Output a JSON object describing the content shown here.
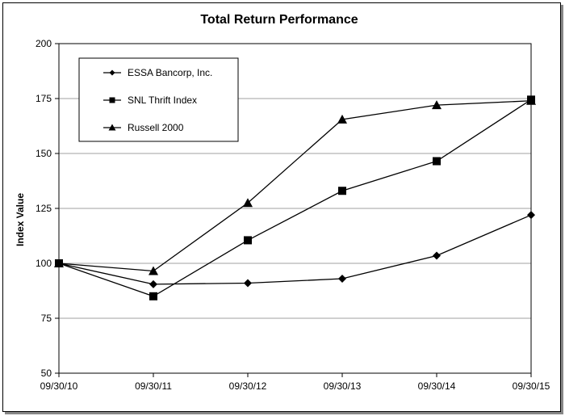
{
  "chart_data": {
    "type": "line",
    "title": "Total Return Performance",
    "xlabel": "",
    "ylabel": "Index Value",
    "categories": [
      "09/30/10",
      "09/30/11",
      "09/30/12",
      "09/30/13",
      "09/30/14",
      "09/30/15"
    ],
    "ylim": [
      50,
      200
    ],
    "yticks": [
      50,
      75,
      100,
      125,
      150,
      175,
      200
    ],
    "grid": true,
    "legend_position": "top-left",
    "series": [
      {
        "name": "ESSA Bancorp, Inc.",
        "marker": "diamond",
        "values": [
          100,
          90.5,
          91,
          93,
          103.5,
          122
        ]
      },
      {
        "name": "SNL Thrift Index",
        "marker": "square",
        "values": [
          100,
          85,
          110.5,
          133,
          146.5,
          174.5
        ]
      },
      {
        "name": "Russell 2000",
        "marker": "triangle",
        "values": [
          100,
          96.5,
          127.5,
          165.5,
          172,
          174
        ]
      }
    ],
    "line_color": "#000000",
    "grid_color": "#a0a0a0"
  }
}
